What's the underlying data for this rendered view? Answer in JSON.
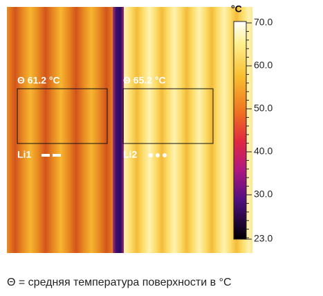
{
  "image": {
    "areas": [
      {
        "label": "Θ 61.2 °C",
        "line": "Li1"
      },
      {
        "label": "Θ 65.2 °C",
        "line": "Li2"
      }
    ]
  },
  "scale": {
    "unit": "°C",
    "labels": [
      "70.0",
      "60.0",
      "50.0",
      "40.0",
      "30.0",
      "23.0"
    ]
  },
  "caption": "Θ = средняя температура поверхности в °C"
}
